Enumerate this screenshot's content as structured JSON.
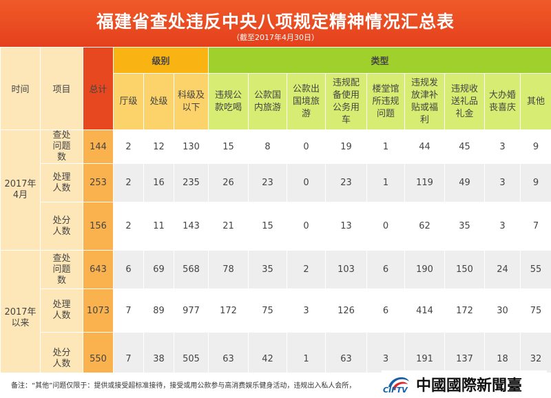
{
  "title": "福建省查处违反中央八项规定精神情况汇总表",
  "subtitle": "（截至2017年4月30日）",
  "headers": {
    "time": "时间",
    "item": "项目",
    "total": "总计",
    "level_group": "级别",
    "type_group": "类型",
    "level": [
      "厅级",
      "处级",
      "科级及以下"
    ],
    "type": [
      "违规公款吃喝",
      "公款国内旅游",
      "公款出国境旅游",
      "违规配备使用公务用车",
      "楼堂馆所违规问题",
      "违规发放津补贴或福利",
      "违规收送礼品礼金",
      "大办婚丧喜庆",
      "其他"
    ]
  },
  "periods": [
    {
      "label": "2017年4月",
      "rows": [
        {
          "item": "查处问题数",
          "total": "144",
          "values": [
            "2",
            "12",
            "130",
            "15",
            "8",
            "0",
            "19",
            "1",
            "44",
            "45",
            "3",
            "9"
          ]
        },
        {
          "item": "处理人数",
          "total": "253",
          "values": [
            "2",
            "16",
            "235",
            "26",
            "23",
            "0",
            "23",
            "1",
            "119",
            "49",
            "3",
            "9"
          ]
        },
        {
          "item": "处分人数",
          "total": "156",
          "values": [
            "2",
            "11",
            "143",
            "21",
            "15",
            "0",
            "13",
            "0",
            "62",
            "35",
            "3",
            "7"
          ]
        }
      ]
    },
    {
      "label": "2017年以来",
      "rows": [
        {
          "item": "查处问题数",
          "total": "643",
          "values": [
            "6",
            "69",
            "568",
            "78",
            "35",
            "2",
            "103",
            "6",
            "190",
            "150",
            "24",
            "55"
          ]
        },
        {
          "item": "处理人数",
          "total": "1073",
          "values": [
            "7",
            "89",
            "977",
            "172",
            "75",
            "3",
            "126",
            "6",
            "414",
            "172",
            "30",
            "75"
          ]
        },
        {
          "item": "处分人数",
          "total": "550",
          "values": [
            "7",
            "38",
            "505",
            "63",
            "42",
            "1",
            "63",
            "3",
            "191",
            "137",
            "18",
            "32"
          ]
        }
      ]
    }
  ],
  "note": "备注：“其他”问题仅限于：提供或接受超标准接待，接受或用公款参与高消费娱乐健身活动，违规出入私人会所，",
  "logo": {
    "name": "中國國際新聞臺",
    "abbr": "CIFTV"
  }
}
